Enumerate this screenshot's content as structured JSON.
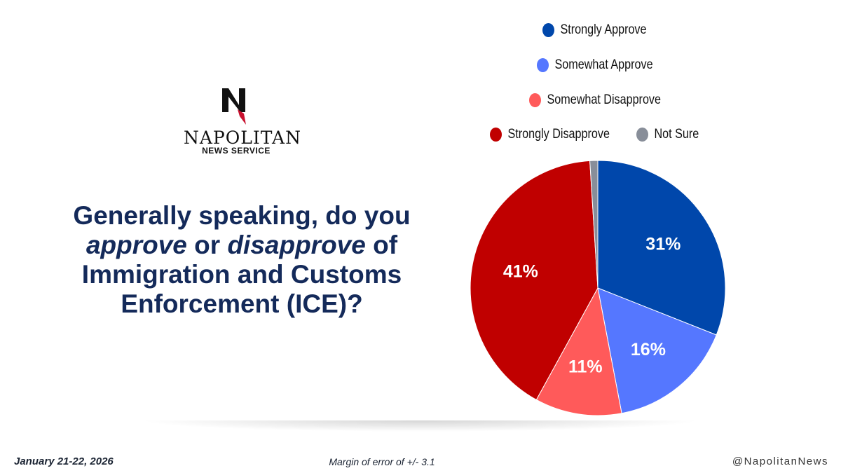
{
  "logo": {
    "name": "NAPOLITAN",
    "sub": "NEWS SERVICE"
  },
  "question": {
    "line1": "Generally speaking, do you",
    "approve": "approve",
    "or": " or ",
    "disapprove": "disapprove",
    "of": " of",
    "line3": "Immigration and Customs",
    "line4": "Enforcement (ICE)?"
  },
  "chart_data": {
    "type": "pie",
    "title": "",
    "slices": [
      {
        "label": "Strongly Approve",
        "value": 31,
        "display": "31%",
        "color": "#0047ab"
      },
      {
        "label": "Somewhat Approve",
        "value": 16,
        "display": "16%",
        "color": "#5577ff"
      },
      {
        "label": "Somewhat Disapprove",
        "value": 11,
        "display": "11%",
        "color": "#ff5a5a"
      },
      {
        "label": "Strongly Disapprove",
        "value": 41,
        "display": "41%",
        "color": "#c00000"
      },
      {
        "label": "Not Sure",
        "value": 1,
        "display": "",
        "color": "#888e99"
      }
    ],
    "legend_position": "top"
  },
  "footer": {
    "date": "January 21-22, 2026",
    "margin": "Margin of error of +/- 3.1",
    "handle": "@NapolitanNews"
  }
}
